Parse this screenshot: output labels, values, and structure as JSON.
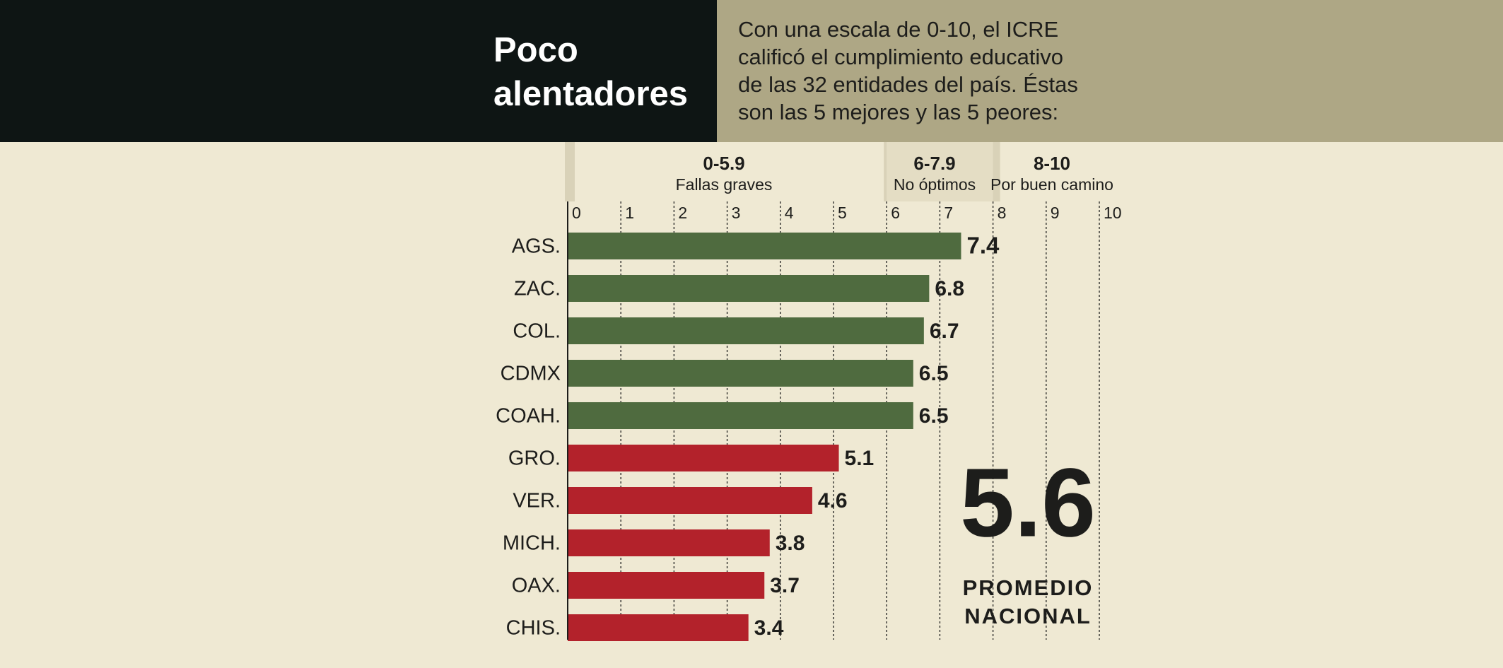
{
  "chart_data": {
    "type": "hbar",
    "title": "Poco alentadores",
    "subtitle": [
      "Con una escala de 0-10, el ICRE",
      "calificó el cumplimiento educativo",
      "de las 32 entidades del país. Éstas",
      "son las 5 mejores y las 5 peores:"
    ],
    "categories": [
      "AGS.",
      "ZAC.",
      "COL.",
      "CDMX",
      "COAH.",
      "GRO.",
      "VER.",
      "MICH.",
      "OAX.",
      "CHIS."
    ],
    "values": [
      7.4,
      6.8,
      6.7,
      6.5,
      6.5,
      5.1,
      4.6,
      3.8,
      3.7,
      3.4
    ],
    "colors": [
      "#4f6b3f",
      "#4f6b3f",
      "#4f6b3f",
      "#4f6b3f",
      "#4f6b3f",
      "#b3222b",
      "#b3222b",
      "#b3222b",
      "#b3222b",
      "#b3222b"
    ],
    "xlim": [
      0,
      10
    ],
    "xticks": [
      0,
      1,
      2,
      3,
      4,
      5,
      6,
      7,
      8,
      9,
      10
    ],
    "grid": true,
    "ranges": [
      {
        "label": "0-5.9",
        "description": "Fallas graves"
      },
      {
        "label": "6-7.9",
        "description": "No óptimos"
      },
      {
        "label": "8-10",
        "description": "Por buen camino"
      }
    ],
    "average": {
      "value": 5.6,
      "label": "PROMEDIO NACIONAL"
    }
  }
}
